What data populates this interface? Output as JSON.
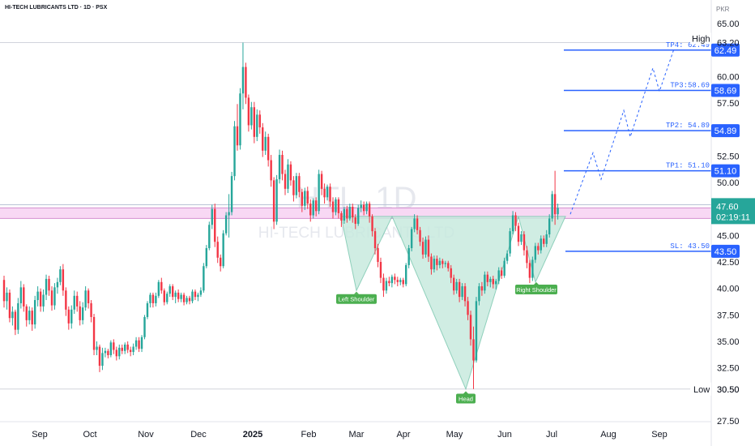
{
  "header": {
    "title": "HI-TECH LUBRICANTS LTD · 1D · PSX",
    "currency": "PKR"
  },
  "watermark": {
    "ticker": "HTL, 1D",
    "name": "HI-TECH LUBRICANTS LTD"
  },
  "colors": {
    "up": "#26a69a",
    "down": "#f23645",
    "level_line": "#2962ff",
    "pattern_fill": "#c8eadf",
    "annotation_bg": "#4caf50"
  },
  "chart_data": {
    "type": "candlestick",
    "ylim": [
      27.5,
      65.0
    ],
    "y_ticks": [
      "65.00",
      "62.50",
      "60.00",
      "57.50",
      "52.50",
      "50.00",
      "45.00",
      "42.50",
      "40.00",
      "37.50",
      "35.00",
      "32.50",
      "30.50",
      "27.50"
    ],
    "x_ticks": [
      "Sep",
      "Oct",
      "Nov",
      "Dec",
      "2025",
      "Feb",
      "Mar",
      "Apr",
      "May",
      "Jun",
      "Jul",
      "Aug",
      "Sep"
    ],
    "high_label": "High",
    "high_value": "63.20",
    "low_label": "Low",
    "low_value": "30.50",
    "last_price": "47.60",
    "countdown": "02:19:11",
    "resistance_zone": [
      46.6,
      47.6
    ],
    "levels": [
      {
        "label": "TP4: 62.49",
        "value": 62.49,
        "badge": "62.49"
      },
      {
        "label": "TP3:58.69",
        "value": 58.69,
        "badge": "58.69"
      },
      {
        "label": "TP2: 54.89",
        "value": 54.89,
        "badge": "54.89"
      },
      {
        "label": "TP1: 51.10",
        "value": 51.1,
        "badge": "51.10"
      },
      {
        "label": "SL: 43.50",
        "value": 43.5,
        "badge": "43.50"
      }
    ],
    "annotations": [
      "Left Shoulder",
      "Head",
      "Right Shoulder"
    ],
    "pattern": "inverse head and shoulders",
    "candles": [
      [
        40.8,
        41.2,
        38.2,
        38.8
      ],
      [
        38.8,
        40.1,
        38.0,
        39.6
      ],
      [
        39.6,
        39.9,
        36.8,
        37.2
      ],
      [
        37.2,
        38.3,
        36.5,
        37.8
      ],
      [
        37.8,
        38.0,
        35.6,
        36.1
      ],
      [
        36.1,
        39.1,
        35.7,
        38.6
      ],
      [
        38.6,
        40.7,
        38.1,
        40.1
      ],
      [
        40.1,
        40.4,
        37.8,
        38.3
      ],
      [
        38.3,
        38.5,
        36.4,
        37.0
      ],
      [
        37.0,
        38.3,
        36.6,
        37.9
      ],
      [
        37.9,
        38.2,
        36.0,
        36.6
      ],
      [
        36.6,
        39.3,
        36.2,
        38.9
      ],
      [
        38.9,
        40.2,
        38.3,
        39.7
      ],
      [
        39.7,
        40.0,
        37.8,
        38.3
      ],
      [
        38.3,
        39.9,
        37.8,
        39.4
      ],
      [
        39.4,
        41.3,
        38.9,
        40.9
      ],
      [
        40.9,
        41.2,
        39.3,
        39.8
      ],
      [
        39.8,
        40.2,
        37.9,
        38.4
      ],
      [
        38.4,
        40.5,
        38.0,
        40.1
      ],
      [
        40.1,
        41.0,
        39.5,
        40.6
      ],
      [
        40.6,
        42.1,
        40.3,
        41.8
      ],
      [
        41.8,
        42.3,
        39.3,
        39.8
      ],
      [
        39.8,
        40.1,
        37.4,
        38.0
      ],
      [
        38.0,
        38.3,
        36.1,
        36.7
      ],
      [
        36.7,
        38.4,
        36.2,
        38.0
      ],
      [
        38.0,
        39.8,
        37.6,
        39.3
      ],
      [
        39.3,
        39.7,
        37.8,
        38.3
      ],
      [
        38.3,
        38.8,
        36.5,
        37.0
      ],
      [
        37.0,
        38.7,
        36.6,
        38.2
      ],
      [
        38.2,
        40.2,
        37.9,
        39.8
      ],
      [
        39.8,
        40.0,
        38.1,
        38.6
      ],
      [
        38.6,
        38.9,
        36.8,
        37.3
      ],
      [
        37.3,
        37.6,
        33.7,
        34.2
      ],
      [
        34.2,
        35.0,
        33.7,
        34.5
      ],
      [
        34.5,
        34.7,
        32.1,
        32.7
      ],
      [
        32.7,
        34.4,
        32.3,
        33.9
      ],
      [
        33.9,
        34.4,
        33.5,
        34.1
      ],
      [
        34.1,
        34.3,
        33.4,
        33.7
      ],
      [
        33.7,
        35.1,
        33.5,
        34.9
      ],
      [
        34.9,
        35.2,
        33.8,
        34.2
      ],
      [
        34.2,
        34.5,
        33.2,
        33.6
      ],
      [
        33.6,
        34.7,
        33.3,
        34.4
      ],
      [
        34.4,
        34.7,
        33.8,
        34.1
      ],
      [
        34.1,
        34.9,
        33.8,
        34.7
      ],
      [
        34.7,
        35.0,
        33.9,
        34.2
      ],
      [
        34.2,
        34.5,
        33.6,
        34.0
      ],
      [
        34.0,
        34.8,
        33.7,
        34.5
      ],
      [
        34.5,
        35.4,
        34.2,
        35.1
      ],
      [
        35.1,
        35.4,
        34.0,
        34.3
      ],
      [
        34.3,
        35.6,
        34.0,
        35.4
      ],
      [
        35.4,
        37.5,
        35.2,
        37.3
      ],
      [
        37.3,
        38.8,
        37.1,
        38.6
      ],
      [
        38.6,
        39.6,
        38.2,
        39.4
      ],
      [
        39.4,
        39.6,
        38.2,
        38.6
      ],
      [
        38.6,
        39.6,
        38.3,
        39.3
      ],
      [
        39.3,
        40.8,
        39.1,
        40.6
      ],
      [
        40.6,
        41.0,
        39.5,
        39.8
      ],
      [
        39.8,
        40.0,
        38.4,
        38.7
      ],
      [
        38.7,
        39.7,
        38.5,
        39.5
      ],
      [
        39.5,
        40.4,
        39.2,
        40.2
      ],
      [
        40.2,
        40.4,
        38.9,
        39.2
      ],
      [
        39.2,
        39.8,
        38.6,
        39.6
      ],
      [
        39.6,
        39.9,
        38.7,
        39.0
      ],
      [
        39.0,
        39.6,
        38.7,
        39.4
      ],
      [
        39.4,
        39.6,
        38.4,
        38.7
      ],
      [
        38.7,
        39.3,
        38.5,
        39.1
      ],
      [
        39.1,
        39.3,
        38.5,
        38.8
      ],
      [
        38.8,
        39.9,
        38.6,
        39.7
      ],
      [
        39.7,
        39.9,
        38.9,
        39.2
      ],
      [
        39.2,
        39.6,
        38.8,
        39.4
      ],
      [
        39.4,
        40.1,
        39.2,
        39.8
      ],
      [
        39.8,
        42.4,
        39.6,
        42.1
      ],
      [
        42.1,
        44.1,
        41.9,
        43.8
      ],
      [
        43.8,
        46.3,
        43.6,
        46.0
      ],
      [
        46.0,
        47.9,
        45.6,
        47.5
      ],
      [
        47.5,
        48.0,
        43.9,
        44.4
      ],
      [
        44.4,
        44.9,
        42.4,
        42.9
      ],
      [
        42.9,
        43.2,
        41.6,
        42.1
      ],
      [
        42.1,
        45.5,
        41.9,
        45.2
      ],
      [
        45.2,
        47.2,
        45.0,
        46.9
      ],
      [
        46.9,
        48.9,
        44.8,
        47.2
      ],
      [
        47.2,
        51.0,
        46.9,
        50.6
      ],
      [
        50.6,
        55.8,
        50.2,
        55.3
      ],
      [
        55.3,
        57.4,
        53.0,
        53.5
      ],
      [
        53.5,
        58.9,
        53.1,
        58.4
      ],
      [
        58.4,
        63.2,
        56.9,
        60.9
      ],
      [
        60.9,
        61.3,
        57.4,
        58.0
      ],
      [
        58.0,
        58.3,
        54.8,
        55.4
      ],
      [
        55.4,
        57.6,
        55.0,
        57.1
      ],
      [
        57.1,
        57.6,
        53.7,
        54.3
      ],
      [
        54.3,
        56.9,
        53.9,
        56.4
      ],
      [
        56.4,
        56.8,
        54.6,
        55.2
      ],
      [
        55.2,
        55.6,
        52.4,
        53.0
      ],
      [
        53.0,
        54.8,
        52.6,
        54.3
      ],
      [
        54.3,
        54.6,
        51.5,
        52.1
      ],
      [
        52.1,
        52.6,
        49.6,
        50.2
      ],
      [
        50.2,
        50.5,
        45.6,
        46.3
      ],
      [
        46.3,
        50.7,
        46.0,
        50.3
      ],
      [
        50.3,
        53.1,
        49.9,
        52.6
      ],
      [
        52.6,
        53.0,
        50.2,
        50.8
      ],
      [
        50.8,
        51.2,
        48.8,
        49.4
      ],
      [
        49.4,
        52.2,
        49.0,
        51.7
      ],
      [
        51.7,
        52.0,
        49.7,
        50.2
      ],
      [
        50.2,
        50.6,
        48.2,
        48.8
      ],
      [
        48.8,
        50.9,
        48.5,
        50.6
      ],
      [
        50.6,
        50.9,
        48.6,
        49.1
      ],
      [
        49.1,
        49.4,
        47.2,
        47.8
      ],
      [
        47.8,
        49.5,
        47.4,
        49.2
      ],
      [
        49.2,
        49.6,
        47.5,
        48.0
      ],
      [
        48.0,
        48.4,
        46.3,
        46.9
      ],
      [
        46.9,
        48.5,
        46.6,
        48.3
      ],
      [
        48.3,
        48.6,
        46.8,
        47.3
      ],
      [
        47.3,
        51.2,
        47.0,
        50.8
      ],
      [
        50.8,
        51.1,
        48.8,
        49.4
      ],
      [
        49.4,
        49.9,
        48.0,
        48.6
      ],
      [
        48.6,
        49.8,
        48.3,
        49.6
      ],
      [
        49.6,
        49.9,
        47.7,
        48.2
      ],
      [
        48.2,
        48.6,
        46.6,
        47.2
      ],
      [
        47.2,
        48.6,
        46.9,
        48.4
      ],
      [
        48.4,
        48.6,
        46.6,
        47.1
      ],
      [
        47.1,
        47.3,
        45.8,
        46.4
      ],
      [
        46.4,
        47.7,
        46.1,
        47.5
      ],
      [
        47.5,
        47.8,
        46.2,
        46.6
      ],
      [
        46.6,
        48.0,
        46.4,
        47.7
      ],
      [
        47.7,
        48.0,
        46.2,
        46.7
      ],
      [
        46.7,
        47.0,
        45.6,
        46.1
      ],
      [
        46.1,
        47.9,
        45.9,
        47.6
      ],
      [
        47.6,
        48.3,
        47.2,
        47.9
      ],
      [
        47.9,
        48.2,
        46.9,
        47.3
      ],
      [
        47.3,
        48.2,
        47.0,
        48.0
      ],
      [
        48.0,
        48.2,
        46.2,
        46.8
      ],
      [
        46.8,
        47.0,
        44.9,
        45.4
      ],
      [
        45.4,
        45.7,
        43.2,
        43.8
      ],
      [
        43.8,
        44.2,
        42.0,
        42.5
      ],
      [
        42.5,
        42.9,
        40.5,
        41.0
      ],
      [
        41.0,
        41.4,
        39.2,
        39.8
      ],
      [
        39.8,
        41.0,
        39.5,
        40.7
      ],
      [
        40.7,
        41.1,
        40.2,
        40.5
      ],
      [
        40.5,
        41.3,
        40.1,
        41.1
      ],
      [
        41.1,
        41.4,
        40.4,
        40.8
      ],
      [
        40.8,
        41.1,
        40.2,
        40.6
      ],
      [
        40.6,
        41.0,
        40.3,
        40.8
      ],
      [
        40.8,
        41.0,
        40.1,
        40.4
      ],
      [
        40.4,
        42.4,
        40.2,
        42.2
      ],
      [
        42.2,
        44.1,
        41.9,
        43.8
      ],
      [
        43.8,
        45.8,
        43.5,
        45.6
      ],
      [
        45.6,
        47.0,
        45.3,
        46.6
      ],
      [
        46.6,
        46.9,
        45.1,
        45.5
      ],
      [
        45.5,
        45.8,
        44.0,
        44.4
      ],
      [
        44.4,
        44.8,
        42.8,
        43.2
      ],
      [
        43.2,
        44.9,
        42.9,
        44.6
      ],
      [
        44.6,
        45.0,
        42.5,
        43.0
      ],
      [
        43.0,
        43.3,
        41.3,
        41.8
      ],
      [
        41.8,
        43.1,
        41.5,
        42.8
      ],
      [
        42.8,
        43.1,
        41.7,
        42.2
      ],
      [
        42.2,
        42.9,
        41.9,
        42.6
      ],
      [
        42.6,
        42.8,
        41.9,
        42.3
      ],
      [
        42.3,
        42.6,
        42.0,
        42.4
      ],
      [
        42.4,
        42.6,
        41.6,
        41.9
      ],
      [
        41.9,
        42.2,
        40.5,
        41.0
      ],
      [
        41.0,
        41.3,
        39.4,
        39.8
      ],
      [
        39.8,
        40.9,
        39.5,
        40.6
      ],
      [
        40.6,
        40.9,
        38.7,
        39.2
      ],
      [
        39.2,
        40.5,
        38.9,
        40.2
      ],
      [
        40.2,
        40.5,
        38.3,
        38.8
      ],
      [
        38.8,
        39.2,
        37.0,
        37.5
      ],
      [
        37.5,
        37.9,
        34.6,
        35.2
      ],
      [
        35.2,
        36.4,
        30.5,
        33.2
      ],
      [
        33.2,
        39.2,
        33.0,
        38.8
      ],
      [
        38.8,
        40.5,
        38.4,
        40.2
      ],
      [
        40.2,
        40.6,
        39.3,
        39.8
      ],
      [
        39.8,
        41.6,
        39.5,
        41.3
      ],
      [
        41.3,
        41.6,
        40.2,
        40.6
      ],
      [
        40.6,
        41.1,
        40.1,
        40.9
      ],
      [
        40.9,
        41.2,
        40.0,
        40.4
      ],
      [
        40.4,
        40.9,
        39.9,
        40.7
      ],
      [
        40.7,
        42.0,
        40.4,
        41.7
      ],
      [
        41.7,
        42.0,
        40.9,
        41.2
      ],
      [
        41.2,
        42.9,
        41.0,
        42.6
      ],
      [
        42.6,
        43.6,
        42.3,
        43.3
      ],
      [
        43.3,
        45.7,
        43.0,
        45.4
      ],
      [
        45.4,
        47.3,
        45.1,
        46.9
      ],
      [
        46.9,
        47.2,
        45.4,
        45.9
      ],
      [
        45.9,
        46.2,
        44.0,
        44.4
      ],
      [
        44.4,
        45.4,
        44.1,
        45.1
      ],
      [
        45.1,
        45.4,
        43.1,
        43.6
      ],
      [
        43.6,
        44.0,
        41.9,
        42.4
      ],
      [
        42.4,
        42.7,
        40.5,
        41.0
      ],
      [
        41.0,
        43.0,
        40.7,
        42.7
      ],
      [
        42.7,
        44.3,
        42.4,
        44.0
      ],
      [
        44.0,
        44.3,
        43.2,
        43.6
      ],
      [
        43.6,
        45.0,
        43.3,
        44.7
      ],
      [
        44.7,
        45.0,
        43.9,
        44.2
      ],
      [
        44.2,
        45.5,
        43.9,
        45.1
      ],
      [
        45.1,
        47.0,
        44.8,
        46.6
      ],
      [
        46.6,
        49.2,
        46.3,
        48.9
      ],
      [
        48.9,
        51.1,
        46.0,
        47.0
      ],
      [
        47.0,
        48.0,
        46.5,
        47.6
      ]
    ]
  }
}
